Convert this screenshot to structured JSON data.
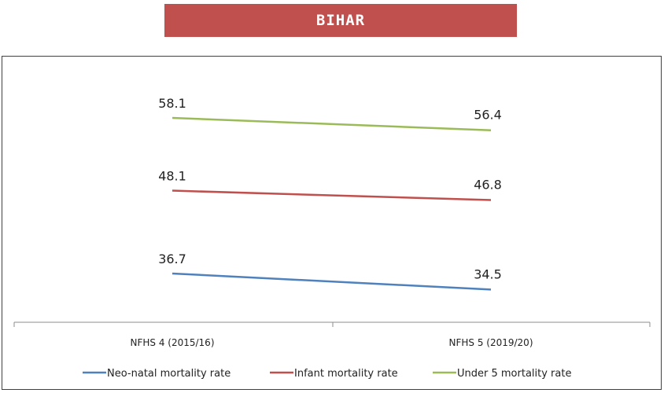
{
  "title": "BIHAR",
  "colors": {
    "banner": "#c0504d",
    "neo": "#4f81bd",
    "infant": "#c0504d",
    "under5": "#9bbb59"
  },
  "chart_data": {
    "type": "line",
    "categories": [
      "NFHS 4 (2015/16)",
      "NFHS 5 (2019/20)"
    ],
    "series": [
      {
        "name": "Neo-natal mortality rate",
        "values": [
          36.7,
          34.5
        ],
        "labels": [
          "36.7",
          "34.5"
        ],
        "color": "#4f81bd"
      },
      {
        "name": "Infant mortality rate",
        "values": [
          48.1,
          46.8
        ],
        "labels": [
          "48.1",
          "46.8"
        ],
        "color": "#c0504d"
      },
      {
        "name": "Under 5 mortality rate",
        "values": [
          58.1,
          56.4
        ],
        "labels": [
          "58.1",
          "56.4"
        ],
        "color": "#9bbb59"
      }
    ],
    "legend": "bottom",
    "grid": false
  }
}
